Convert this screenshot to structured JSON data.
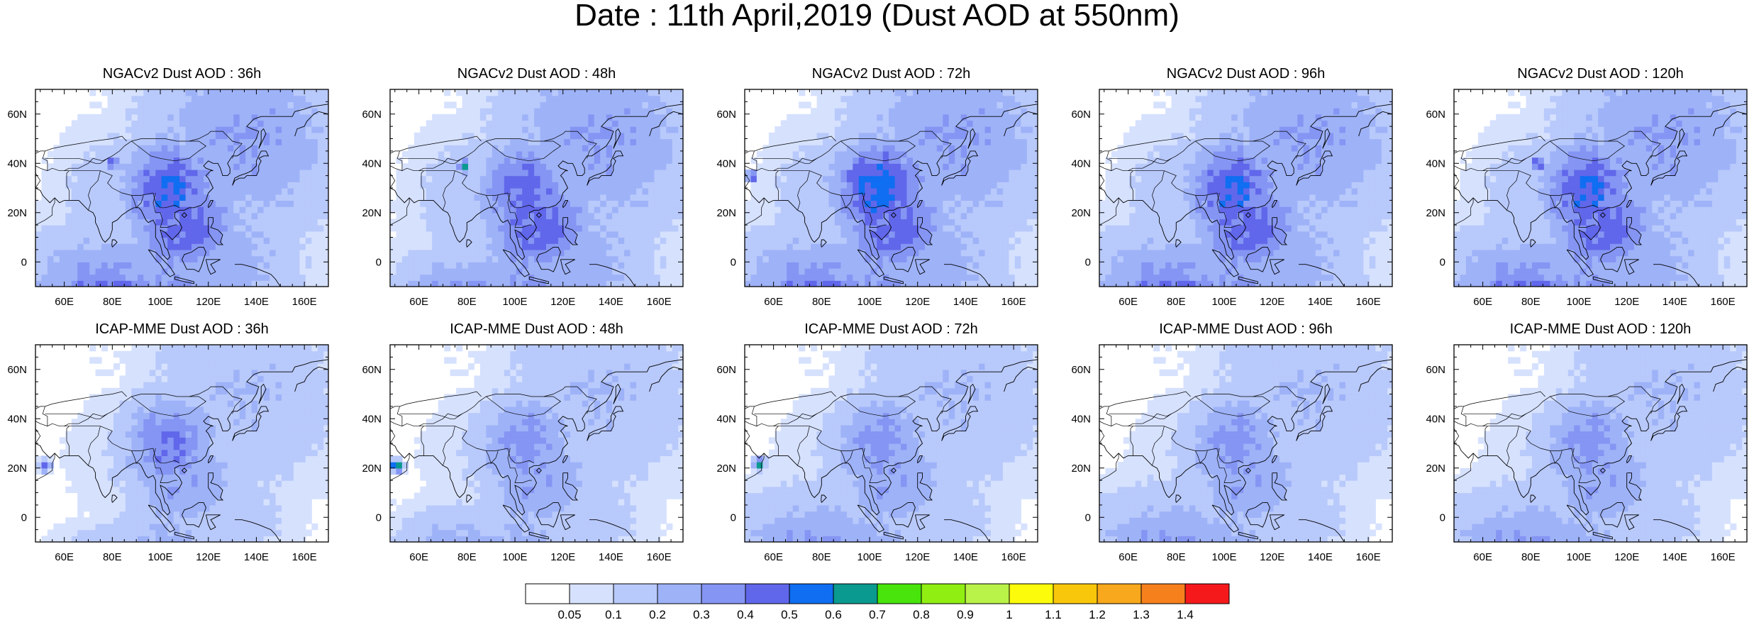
{
  "title": "Date : 11th April,2019 (Dust AOD at 550nm)",
  "x_ticks": [
    "60E",
    "80E",
    "100E",
    "120E",
    "140E",
    "160E"
  ],
  "y_ticks": [
    "60N",
    "40N",
    "20N",
    "0"
  ],
  "map_extent": {
    "lon": [
      48,
      170
    ],
    "lat": [
      -10,
      70
    ]
  },
  "panels": [
    {
      "title": "NGACv2 Dust AOD : 36h",
      "model": "NGACv2",
      "lead": "36h",
      "dust": [
        [
          -2.3,
          -6.3,
          4,
          0.55
        ],
        [
          0.4,
          0,
          2.2,
          0.5
        ],
        [
          1,
          -1.5,
          2.5,
          0.45
        ],
        [
          0.2,
          -4.5,
          2.5,
          0.35
        ],
        [
          3.5,
          2,
          4.5,
          0.3
        ],
        [
          2.7,
          -3,
          3.5,
          0.25
        ],
        [
          -1.2,
          -0.5,
          3.5,
          0.18
        ],
        [
          -2.5,
          3.4,
          2.4,
          0.05
        ]
      ],
      "hotspots": [
        {
          "lon": 80,
          "lat": 40,
          "level": 0.65
        }
      ]
    },
    {
      "title": "NGACv2 Dust AOD : 48h",
      "model": "NGACv2",
      "lead": "48h",
      "dust": [
        [
          -2.3,
          -6.3,
          3.2,
          0.55
        ],
        [
          0.4,
          0,
          2.2,
          0.45
        ],
        [
          1,
          -1.5,
          2.5,
          0.45
        ],
        [
          0.2,
          -4.5,
          2.5,
          0.35
        ],
        [
          3.5,
          2,
          4.5,
          0.3
        ],
        [
          2.7,
          -3,
          3.5,
          0.25
        ],
        [
          -1.2,
          -0.5,
          3.5,
          0.18
        ],
        [
          -2.5,
          3.4,
          2.4,
          0.05
        ]
      ],
      "hotspots": [
        {
          "lon": 79,
          "lat": 39,
          "level": 0.75
        }
      ]
    },
    {
      "title": "NGACv2 Dust AOD : 72h",
      "model": "NGACv2",
      "lead": "72h",
      "dust": [
        [
          -2.3,
          -6.3,
          4,
          0.55
        ],
        [
          0.4,
          0,
          2.2,
          0.55
        ],
        [
          1,
          -1.5,
          2.5,
          0.45
        ],
        [
          0.2,
          -4.5,
          2.5,
          0.35
        ],
        [
          3.5,
          2,
          4.5,
          0.3
        ],
        [
          2.7,
          -3,
          3.5,
          0.25
        ],
        [
          -1.2,
          -0.5,
          3.5,
          0.18
        ],
        [
          -2.5,
          3.4,
          2.4,
          0.05
        ]
      ],
      "hotspots": [
        {
          "lon": 51,
          "lat": 35,
          "level": 0.55
        }
      ]
    },
    {
      "title": "NGACv2 Dust AOD : 96h",
      "model": "NGACv2",
      "lead": "96h",
      "dust": [
        [
          -2.3,
          -6.3,
          4,
          0.55
        ],
        [
          0.4,
          0,
          2.2,
          0.5
        ],
        [
          1,
          -1.5,
          2.5,
          0.45
        ],
        [
          0.2,
          -4.5,
          2.5,
          0.35
        ],
        [
          3.5,
          2,
          4.5,
          0.3
        ],
        [
          2.7,
          -3,
          3.5,
          0.25
        ],
        [
          -1.2,
          -0.5,
          3.5,
          0.18
        ],
        [
          -2.5,
          3.4,
          2.4,
          0.05
        ]
      ],
      "hotspots": []
    },
    {
      "title": "NGACv2 Dust AOD : 120h",
      "model": "NGACv2",
      "lead": "120h",
      "dust": [
        [
          -2.3,
          -6.3,
          4,
          0.55
        ],
        [
          0.4,
          0,
          2.2,
          0.5
        ],
        [
          1,
          -1.5,
          2.5,
          0.45
        ],
        [
          0.2,
          -4.5,
          2.5,
          0.35
        ],
        [
          3.5,
          2,
          4.5,
          0.3
        ],
        [
          2.7,
          -3,
          3.5,
          0.25
        ],
        [
          -1.2,
          -0.5,
          3.5,
          0.18
        ],
        [
          -2.5,
          3.4,
          2.4,
          0.05
        ]
      ],
      "hotspots": [
        {
          "lon": 83,
          "lat": 40,
          "level": 0.65
        }
      ]
    },
    {
      "title": "ICAP-MME Dust AOD : 36h",
      "model": "ICAP-MME",
      "lead": "36h",
      "dust": [
        [
          -2.3,
          -6.3,
          2.4,
          0.45
        ],
        [
          0.4,
          0,
          2.2,
          0.4
        ],
        [
          1,
          -1.5,
          2.5,
          0.3
        ],
        [
          0.2,
          -4.5,
          2.5,
          0.25
        ],
        [
          3.5,
          2,
          4.5,
          0.2
        ],
        [
          2.7,
          -3,
          3.5,
          0.15
        ],
        [
          -1.2,
          -0.5,
          3.5,
          0.1
        ],
        [
          -2.5,
          3.4,
          2.4,
          0.05
        ]
      ],
      "hotspots": [
        {
          "lon": 52,
          "lat": 21,
          "level": 0.55
        }
      ]
    },
    {
      "title": "ICAP-MME Dust AOD : 48h",
      "model": "ICAP-MME",
      "lead": "48h",
      "dust": [
        [
          -2.3,
          -6.3,
          3.2,
          0.45
        ],
        [
          0.4,
          0,
          2.2,
          0.35
        ],
        [
          1,
          -1.5,
          2.5,
          0.3
        ],
        [
          0.2,
          -4.5,
          2.5,
          0.25
        ],
        [
          3.5,
          2,
          4.5,
          0.2
        ],
        [
          2.7,
          -3,
          3.5,
          0.15
        ],
        [
          -1.2,
          -0.5,
          3.5,
          0.1
        ],
        [
          -2.5,
          3.4,
          2.4,
          0.05
        ]
      ],
      "hotspots": [
        {
          "lon": 51,
          "lat": 21,
          "level": 0.85
        }
      ]
    },
    {
      "title": "ICAP-MME Dust AOD : 72h",
      "model": "ICAP-MME",
      "lead": "72h",
      "dust": [
        [
          -2.3,
          -6.3,
          4,
          0.45
        ],
        [
          0.4,
          0,
          2.2,
          0.35
        ],
        [
          1,
          -1.5,
          2.5,
          0.3
        ],
        [
          0.2,
          -4.5,
          2.5,
          0.25
        ],
        [
          3.5,
          2,
          4.5,
          0.2
        ],
        [
          2.7,
          -3,
          3.5,
          0.15
        ],
        [
          -1.2,
          -0.5,
          3.5,
          0.1
        ],
        [
          -2.5,
          3.4,
          2.4,
          0.05
        ]
      ],
      "hotspots": [
        {
          "lon": 54,
          "lat": 22,
          "level": 0.7
        }
      ]
    },
    {
      "title": "ICAP-MME Dust AOD : 96h",
      "model": "ICAP-MME",
      "lead": "96h",
      "dust": [
        [
          -2.3,
          -6.3,
          4,
          0.45
        ],
        [
          0.4,
          0,
          2.2,
          0.35
        ],
        [
          1,
          -1.5,
          2.5,
          0.3
        ],
        [
          0.2,
          -4.5,
          2.5,
          0.25
        ],
        [
          3.5,
          2,
          4.5,
          0.2
        ],
        [
          2.7,
          -3,
          3.5,
          0.15
        ],
        [
          -1.2,
          -0.5,
          3.5,
          0.1
        ],
        [
          -2.5,
          3.4,
          2.4,
          0.05
        ]
      ],
      "hotspots": []
    },
    {
      "title": "ICAP-MME Dust AOD : 120h",
      "model": "ICAP-MME",
      "lead": "120h",
      "dust": [
        [
          -2.3,
          -6.3,
          4,
          0.45
        ],
        [
          0.4,
          0,
          2.2,
          0.35
        ],
        [
          1,
          -1.5,
          2.5,
          0.3
        ],
        [
          0.2,
          -4.5,
          2.5,
          0.25
        ],
        [
          3.5,
          2,
          4.5,
          0.2
        ],
        [
          2.7,
          -3,
          3.5,
          0.15
        ],
        [
          -1.2,
          -0.5,
          3.5,
          0.1
        ],
        [
          -2.5,
          3.4,
          2.4,
          0.05
        ]
      ],
      "hotspots": []
    }
  ],
  "colorbar": {
    "labels": [
      "0.05",
      "0.1",
      "0.2",
      "0.3",
      "0.4",
      "0.5",
      "0.6",
      "0.7",
      "0.8",
      "0.9",
      "1",
      "1.1",
      "1.2",
      "1.3",
      "1.4"
    ],
    "colors": [
      "#ffffff",
      "#d6e1fe",
      "#b8c9fb",
      "#9eb2f8",
      "#8595f3",
      "#6167ea",
      "#0f6ef1",
      "#0a9a8f",
      "#48e40c",
      "#90ee12",
      "#b9f248",
      "#fbfb0b",
      "#f8c60b",
      "#f7a81c",
      "#f6801c",
      "#f5191c"
    ]
  }
}
